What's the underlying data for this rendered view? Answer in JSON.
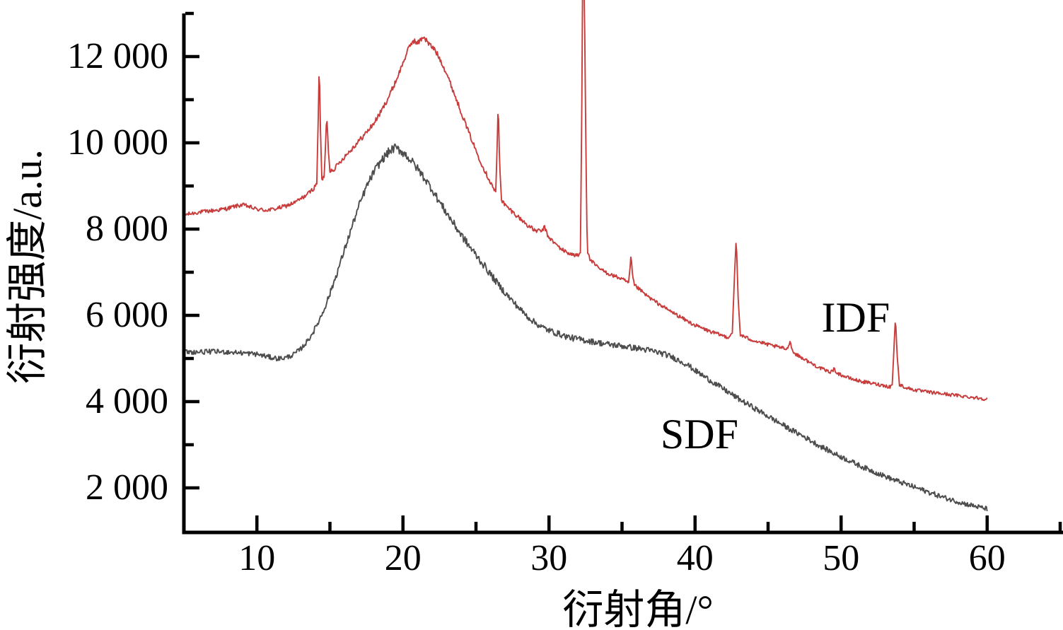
{
  "figure": {
    "background": "#ffffff",
    "axis_color": "#000000"
  },
  "chart_data": {
    "type": "line",
    "title": "",
    "xlabel": "衍射角/°",
    "ylabel": "衍射强度/a.u.",
    "grid": false,
    "legend_position": "inline-curve-labels",
    "x_range_deg": [
      5,
      65.2
    ],
    "y_range": [
      1000,
      13000
    ],
    "x_major_ticks": [
      10,
      20,
      30,
      40,
      50,
      60
    ],
    "x_tick_labels": [
      "10",
      "20",
      "30",
      "40",
      "50",
      "60"
    ],
    "x_minor_ticks": [
      15,
      25,
      35,
      45,
      55,
      65
    ],
    "y_major_ticks": [
      2000,
      4000,
      6000,
      8000,
      10000,
      12000
    ],
    "y_tick_labels": [
      "2 000",
      "4 000",
      "6 000",
      "8 000",
      "10 000",
      "12 000"
    ],
    "y_minor_ticks": [
      3000,
      5000,
      7000,
      9000,
      11000,
      13000
    ],
    "series": [
      {
        "name": "IDF",
        "color": "#c83c3c",
        "label_at": {
          "x_deg": 51.0,
          "y_val": 5950
        },
        "peaks_deg": [
          14.3,
          14.8,
          26.5,
          32.3,
          35.6,
          42.8,
          46.5,
          53.7
        ],
        "broad_hump_max": {
          "x_deg": 21.0,
          "y_val": 12450
        },
        "anchors": [
          [
            5,
            8330
          ],
          [
            5.5,
            8360
          ],
          [
            6,
            8390
          ],
          [
            6.5,
            8410
          ],
          [
            7,
            8430
          ],
          [
            7.5,
            8450
          ],
          [
            8,
            8480
          ],
          [
            8.5,
            8530
          ],
          [
            9,
            8560
          ],
          [
            9.3,
            8540
          ],
          [
            9.7,
            8490
          ],
          [
            10,
            8460
          ],
          [
            10.5,
            8440
          ],
          [
            11,
            8450
          ],
          [
            11.5,
            8490
          ],
          [
            12,
            8540
          ],
          [
            12.5,
            8600
          ],
          [
            13,
            8700
          ],
          [
            13.5,
            8820
          ],
          [
            13.9,
            8950
          ],
          [
            14.1,
            9050
          ],
          [
            14.2,
            10600
          ],
          [
            14.27,
            11900
          ],
          [
            14.35,
            10300
          ],
          [
            14.45,
            9150
          ],
          [
            14.6,
            9200
          ],
          [
            14.7,
            9950
          ],
          [
            14.78,
            10650
          ],
          [
            14.9,
            9800
          ],
          [
            15,
            9350
          ],
          [
            15.3,
            9400
          ],
          [
            15.6,
            9520
          ],
          [
            16,
            9680
          ],
          [
            16.5,
            9860
          ],
          [
            17,
            10050
          ],
          [
            17.5,
            10240
          ],
          [
            18,
            10450
          ],
          [
            18.5,
            10720
          ],
          [
            19,
            11050
          ],
          [
            19.5,
            11420
          ],
          [
            20,
            11850
          ],
          [
            20.4,
            12200
          ],
          [
            20.7,
            12380
          ],
          [
            21,
            12300
          ],
          [
            21.4,
            12470
          ],
          [
            21.8,
            12280
          ],
          [
            22.2,
            12150
          ],
          [
            22.6,
            11900
          ],
          [
            23,
            11600
          ],
          [
            23.5,
            11150
          ],
          [
            24,
            10700
          ],
          [
            24.5,
            10250
          ],
          [
            25,
            9820
          ],
          [
            25.5,
            9420
          ],
          [
            26,
            9080
          ],
          [
            26.35,
            8850
          ],
          [
            26.45,
            9900
          ],
          [
            26.52,
            10960
          ],
          [
            26.62,
            9500
          ],
          [
            26.75,
            8680
          ],
          [
            27,
            8550
          ],
          [
            27.5,
            8400
          ],
          [
            28,
            8250
          ],
          [
            28.5,
            8100
          ],
          [
            29,
            7970
          ],
          [
            29.5,
            7950
          ],
          [
            29.7,
            8050
          ],
          [
            29.9,
            7850
          ],
          [
            30.3,
            7700
          ],
          [
            30.7,
            7580
          ],
          [
            31,
            7500
          ],
          [
            31.5,
            7420
          ],
          [
            32,
            7380
          ],
          [
            32.15,
            7450
          ],
          [
            32.25,
            11000
          ],
          [
            32.3,
            13600
          ],
          [
            32.42,
            13600
          ],
          [
            32.52,
            10000
          ],
          [
            32.62,
            7500
          ],
          [
            32.8,
            7300
          ],
          [
            33.2,
            7150
          ],
          [
            33.6,
            7050
          ],
          [
            34,
            6980
          ],
          [
            34.4,
            6920
          ],
          [
            34.8,
            6870
          ],
          [
            35.1,
            6820
          ],
          [
            35.45,
            6750
          ],
          [
            35.55,
            7100
          ],
          [
            35.62,
            7400
          ],
          [
            35.72,
            6900
          ],
          [
            35.85,
            6700
          ],
          [
            36.2,
            6600
          ],
          [
            36.6,
            6480
          ],
          [
            37,
            6380
          ],
          [
            37.5,
            6270
          ],
          [
            38,
            6160
          ],
          [
            38.5,
            6060
          ],
          [
            39,
            5960
          ],
          [
            39.5,
            5860
          ],
          [
            40,
            5770
          ],
          [
            40.5,
            5700
          ],
          [
            41,
            5630
          ],
          [
            41.5,
            5570
          ],
          [
            42,
            5520
          ],
          [
            42.3,
            5490
          ],
          [
            42.55,
            5600
          ],
          [
            42.7,
            6900
          ],
          [
            42.82,
            7800
          ],
          [
            42.95,
            6400
          ],
          [
            43.1,
            5550
          ],
          [
            43.5,
            5480
          ],
          [
            44,
            5420
          ],
          [
            44.5,
            5370
          ],
          [
            45,
            5320
          ],
          [
            45.5,
            5280
          ],
          [
            46,
            5240
          ],
          [
            46.3,
            5220
          ],
          [
            46.5,
            5400
          ],
          [
            46.7,
            5150
          ],
          [
            47,
            5080
          ],
          [
            47.5,
            4980
          ],
          [
            48,
            4880
          ],
          [
            48.5,
            4790
          ],
          [
            49,
            4710
          ],
          [
            49.3,
            4690
          ],
          [
            49.5,
            4750
          ],
          [
            49.8,
            4650
          ],
          [
            50.2,
            4590
          ],
          [
            50.6,
            4540
          ],
          [
            51,
            4500
          ],
          [
            51.5,
            4460
          ],
          [
            52,
            4430
          ],
          [
            52.5,
            4400
          ],
          [
            53,
            4370
          ],
          [
            53.35,
            4340
          ],
          [
            53.5,
            4400
          ],
          [
            53.6,
            5100
          ],
          [
            53.72,
            5950
          ],
          [
            53.85,
            5000
          ],
          [
            54,
            4390
          ],
          [
            54.4,
            4330
          ],
          [
            54.8,
            4290
          ],
          [
            55.2,
            4260
          ],
          [
            55.6,
            4240
          ],
          [
            56,
            4220
          ],
          [
            56.5,
            4200
          ],
          [
            57,
            4180
          ],
          [
            57.5,
            4160
          ],
          [
            58,
            4140
          ],
          [
            58.5,
            4120
          ],
          [
            59,
            4100
          ],
          [
            59.5,
            4080
          ],
          [
            60,
            4060
          ]
        ],
        "noise_profile": [
          [
            5,
            45
          ],
          [
            13,
            50
          ],
          [
            19,
            70
          ],
          [
            23,
            70
          ],
          [
            27,
            55
          ],
          [
            35,
            45
          ],
          [
            45,
            42
          ],
          [
            60,
            40
          ]
        ]
      },
      {
        "name": "SDF",
        "color": "#4d4d4d",
        "label_at": {
          "x_deg": 40.3,
          "y_val": 3250
        },
        "peaks_deg": [
          19.4
        ],
        "broad_hump_max": {
          "x_deg": 19.4,
          "y_val": 9880
        },
        "anchors": [
          [
            5,
            5150
          ],
          [
            6,
            5150
          ],
          [
            7,
            5160
          ],
          [
            8,
            5150
          ],
          [
            9,
            5130
          ],
          [
            10,
            5100
          ],
          [
            10.5,
            5060
          ],
          [
            11,
            5020
          ],
          [
            11.5,
            5000
          ],
          [
            12,
            5020
          ],
          [
            12.5,
            5090
          ],
          [
            13,
            5220
          ],
          [
            13.5,
            5420
          ],
          [
            14,
            5700
          ],
          [
            14.5,
            6060
          ],
          [
            15,
            6500
          ],
          [
            15.5,
            7000
          ],
          [
            16,
            7520
          ],
          [
            16.5,
            8050
          ],
          [
            17,
            8550
          ],
          [
            17.5,
            8980
          ],
          [
            18,
            9320
          ],
          [
            18.5,
            9580
          ],
          [
            19,
            9780
          ],
          [
            19.4,
            9880
          ],
          [
            19.8,
            9830
          ],
          [
            20.2,
            9720
          ],
          [
            20.6,
            9570
          ],
          [
            21,
            9400
          ],
          [
            21.5,
            9170
          ],
          [
            22,
            8920
          ],
          [
            22.5,
            8630
          ],
          [
            23,
            8370
          ],
          [
            23.5,
            8110
          ],
          [
            24,
            7860
          ],
          [
            24.5,
            7620
          ],
          [
            25,
            7400
          ],
          [
            25.5,
            7180
          ],
          [
            26,
            6950
          ],
          [
            26.5,
            6730
          ],
          [
            27,
            6520
          ],
          [
            27.5,
            6330
          ],
          [
            28,
            6150
          ],
          [
            28.5,
            5980
          ],
          [
            29,
            5840
          ],
          [
            29.5,
            5730
          ],
          [
            30,
            5650
          ],
          [
            30.5,
            5590
          ],
          [
            31,
            5530
          ],
          [
            31.5,
            5480
          ],
          [
            32,
            5450
          ],
          [
            32.5,
            5420
          ],
          [
            33,
            5390
          ],
          [
            33.5,
            5360
          ],
          [
            34,
            5330
          ],
          [
            34.5,
            5310
          ],
          [
            35,
            5290
          ],
          [
            35.5,
            5260
          ],
          [
            36,
            5240
          ],
          [
            36.5,
            5210
          ],
          [
            37,
            5180
          ],
          [
            37.5,
            5140
          ],
          [
            38,
            5090
          ],
          [
            38.5,
            5020
          ],
          [
            39,
            4940
          ],
          [
            39.5,
            4850
          ],
          [
            40,
            4720
          ],
          [
            40.5,
            4610
          ],
          [
            41,
            4500
          ],
          [
            41.5,
            4390
          ],
          [
            42,
            4280
          ],
          [
            42.5,
            4170
          ],
          [
            43,
            4060
          ],
          [
            43.5,
            3960
          ],
          [
            44,
            3860
          ],
          [
            44.5,
            3760
          ],
          [
            45,
            3660
          ],
          [
            45.5,
            3560
          ],
          [
            46,
            3460
          ],
          [
            46.5,
            3360
          ],
          [
            47,
            3270
          ],
          [
            47.5,
            3180
          ],
          [
            48,
            3080
          ],
          [
            48.5,
            2980
          ],
          [
            49,
            2890
          ],
          [
            49.5,
            2800
          ],
          [
            50,
            2720
          ],
          [
            50.5,
            2640
          ],
          [
            51,
            2560
          ],
          [
            51.5,
            2480
          ],
          [
            52,
            2410
          ],
          [
            52.5,
            2340
          ],
          [
            53,
            2270
          ],
          [
            53.5,
            2200
          ],
          [
            54,
            2140
          ],
          [
            54.5,
            2080
          ],
          [
            55,
            2020
          ],
          [
            55.5,
            1960
          ],
          [
            56,
            1900
          ],
          [
            56.5,
            1840
          ],
          [
            57,
            1780
          ],
          [
            57.5,
            1730
          ],
          [
            58,
            1680
          ],
          [
            58.5,
            1630
          ],
          [
            59,
            1590
          ],
          [
            59.5,
            1550
          ],
          [
            60,
            1510
          ]
        ],
        "noise_profile": [
          [
            5,
            55
          ],
          [
            13,
            60
          ],
          [
            15,
            90
          ],
          [
            20,
            110
          ],
          [
            25,
            100
          ],
          [
            28,
            75
          ],
          [
            35,
            70
          ],
          [
            45,
            65
          ],
          [
            60,
            58
          ]
        ]
      }
    ]
  }
}
